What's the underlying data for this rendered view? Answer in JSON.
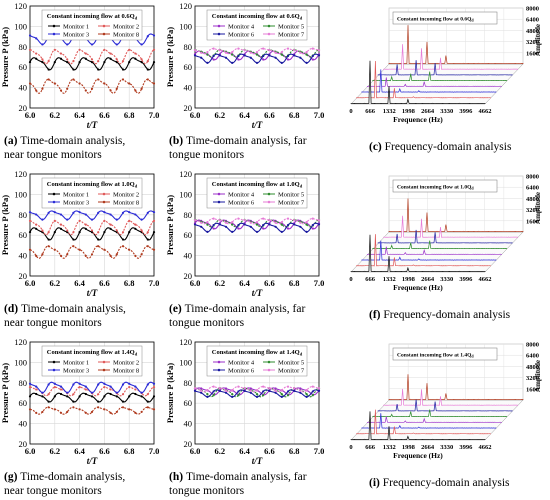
{
  "figure": {
    "rows": [
      {
        "time_near": {
          "legend_title": "Constant incoming flow at 0.6Q",
          "legend_sub": "d",
          "caption_letter": "(a)",
          "caption": "Time-domain analysis,",
          "caption2": "near tongue monitors"
        },
        "time_far": {
          "legend_title": "Constant incoming flow at 0.6Q",
          "legend_sub": "d",
          "caption_letter": "(b)",
          "caption": "Time-domain analysis, far",
          "caption2": "tongue monitors"
        },
        "freq": {
          "legend_title": "Constant incoming flow at 0.6Q",
          "legend_sub": "d",
          "caption_letter": "(c)",
          "caption": "Frequency-domain analysis"
        }
      },
      {
        "time_near": {
          "legend_title": "Constant incoming flow at 1.0Q",
          "legend_sub": "d",
          "caption_letter": "(d)",
          "caption": "Time-domain analysis,",
          "caption2": "near tongue monitors"
        },
        "time_far": {
          "legend_title": "Constant incoming flow at 1.0Q",
          "legend_sub": "d",
          "caption_letter": "(e)",
          "caption": "Time-domain analysis, far",
          "caption2": "tongue monitors"
        },
        "freq": {
          "legend_title": "Constant incoming flow at 1.0Q",
          "legend_sub": "d",
          "caption_letter": "(f)",
          "caption": "Frequency-domain analysis"
        }
      },
      {
        "time_near": {
          "legend_title": "Constant incoming flow at 1.4Q",
          "legend_sub": "d",
          "caption_letter": "(g)",
          "caption": "Time-domain analysis,",
          "caption2": "near tongue monitors"
        },
        "time_far": {
          "legend_title": "Constant incoming flow at 1.4Q",
          "legend_sub": "d",
          "caption_letter": "(h)",
          "caption": "Time-domain analysis, far",
          "caption2": "tongue monitors"
        },
        "freq": {
          "legend_title": "Constant incoming flow at 1.4Q",
          "legend_sub": "d",
          "caption_letter": "(i)",
          "caption": "Frequency-domain analysis"
        }
      }
    ]
  },
  "chart_data": [
    {
      "type": "line",
      "panel": "a",
      "xlabel": "t/T",
      "ylabel": "Pressure P (kPa)",
      "xlim": [
        6.0,
        7.0
      ],
      "ylim": [
        20,
        120
      ],
      "xticks": [
        "6.0",
        "6.2",
        "6.4",
        "6.6",
        "6.8",
        "7.0"
      ],
      "yticks": [
        "20",
        "40",
        "60",
        "80",
        "100",
        "120"
      ],
      "series": [
        {
          "name": "Monitor 1",
          "color": "#000000",
          "mean": 64,
          "amp": 7,
          "waves": 5
        },
        {
          "name": "Monitor 2",
          "color": "#e05a5a",
          "mean": 71,
          "amp": 8,
          "waves": 5
        },
        {
          "name": "Monitor 3",
          "color": "#2b2bd6",
          "mean": 88,
          "amp": 6,
          "waves": 5
        },
        {
          "name": "Monitor 8",
          "color": "#b03a1e",
          "mean": 42,
          "amp": 8,
          "waves": 5
        }
      ]
    },
    {
      "type": "line",
      "panel": "b",
      "xlabel": "t/T",
      "ylabel": "Pressure P (kPa)",
      "xlim": [
        6.0,
        7.0
      ],
      "ylim": [
        20,
        120
      ],
      "xticks": [
        "6.0",
        "6.2",
        "6.4",
        "6.6",
        "6.8",
        "7.0"
      ],
      "yticks": [
        "20",
        "40",
        "60",
        "80",
        "100",
        "120"
      ],
      "series": [
        {
          "name": "Monitor 4",
          "color": "#9b2fc9",
          "mean": 72,
          "amp": 5,
          "waves": 5
        },
        {
          "name": "Monitor 5",
          "color": "#2e8b2e",
          "mean": 74,
          "amp": 4,
          "waves": 5
        },
        {
          "name": "Monitor 6",
          "color": "#1a1aa0",
          "mean": 69,
          "amp": 5,
          "waves": 5
        },
        {
          "name": "Monitor 7",
          "color": "#e67bd6",
          "mean": 76,
          "amp": 3,
          "waves": 5
        }
      ]
    },
    {
      "type": "bar",
      "panel": "c",
      "subtype": "waterfall",
      "xlabel": "Frequence (Hz)",
      "zlabel": "Amplitude",
      "xticks": [
        "0",
        "666",
        "1332",
        "1998",
        "2664",
        "3330",
        "3996",
        "4662"
      ],
      "zticks": [
        "1600",
        "3200",
        "4800",
        "6400",
        "8000"
      ],
      "peak_frequencies": [
        666,
        1332,
        1998
      ],
      "peaks": [
        6500,
        3400,
        1900
      ]
    },
    {
      "type": "line",
      "panel": "d",
      "xlabel": "t/T",
      "ylabel": "Pressure P (kPa)",
      "xlim": [
        6.0,
        7.0
      ],
      "ylim": [
        20,
        120
      ],
      "xticks": [
        "6.0",
        "6.2",
        "6.4",
        "6.6",
        "6.8",
        "7.0"
      ],
      "yticks": [
        "20",
        "40",
        "60",
        "80",
        "100",
        "120"
      ],
      "series": [
        {
          "name": "Monitor 1",
          "color": "#000000",
          "mean": 62,
          "amp": 7,
          "waves": 5
        },
        {
          "name": "Monitor 2",
          "color": "#e05a5a",
          "mean": 68,
          "amp": 8,
          "waves": 5
        },
        {
          "name": "Monitor 3",
          "color": "#2b2bd6",
          "mean": 80,
          "amp": 5,
          "waves": 5
        },
        {
          "name": "Monitor 8",
          "color": "#b03a1e",
          "mean": 44,
          "amp": 7,
          "waves": 5
        }
      ]
    },
    {
      "type": "line",
      "panel": "e",
      "xlabel": "t/T",
      "ylabel": "Pressure P (kPa)",
      "xlim": [
        6.0,
        7.0
      ],
      "ylim": [
        20,
        120
      ],
      "xticks": [
        "6.0",
        "6.2",
        "6.4",
        "6.6",
        "6.8",
        "7.0"
      ],
      "yticks": [
        "20",
        "40",
        "60",
        "80",
        "100",
        "120"
      ],
      "series": [
        {
          "name": "Monitor 4",
          "color": "#9b2fc9",
          "mean": 71,
          "amp": 5,
          "waves": 5
        },
        {
          "name": "Monitor 5",
          "color": "#2e8b2e",
          "mean": 72,
          "amp": 4,
          "waves": 5
        },
        {
          "name": "Monitor 6",
          "color": "#1a1aa0",
          "mean": 68,
          "amp": 5,
          "waves": 5
        },
        {
          "name": "Monitor 7",
          "color": "#e67bd6",
          "mean": 74,
          "amp": 3,
          "waves": 5
        }
      ]
    },
    {
      "type": "bar",
      "panel": "f",
      "subtype": "waterfall",
      "xlabel": "Frequence (Hz)",
      "zlabel": "Amplitude",
      "xticks": [
        "0",
        "666",
        "1332",
        "1998",
        "2664",
        "3330",
        "3996",
        "4662"
      ],
      "zticks": [
        "1600",
        "3200",
        "4800",
        "6400",
        "8000"
      ],
      "peak_frequencies": [
        666,
        1332,
        1998
      ],
      "peaks": [
        5600,
        3000,
        1700
      ]
    },
    {
      "type": "line",
      "panel": "g",
      "xlabel": "t/T",
      "ylabel": "Pressure P (kPa)",
      "xlim": [
        6.0,
        7.0
      ],
      "ylim": [
        20,
        120
      ],
      "xticks": [
        "6.0",
        "6.2",
        "6.4",
        "6.6",
        "6.8",
        "7.0"
      ],
      "yticks": [
        "20",
        "40",
        "60",
        "80",
        "100",
        "120"
      ],
      "series": [
        {
          "name": "Monitor 1",
          "color": "#000000",
          "mean": 66,
          "amp": 5,
          "waves": 5
        },
        {
          "name": "Monitor 2",
          "color": "#e05a5a",
          "mean": 72,
          "amp": 5,
          "waves": 5
        },
        {
          "name": "Monitor 3",
          "color": "#2b2bd6",
          "mean": 76,
          "amp": 6,
          "waves": 5
        },
        {
          "name": "Monitor 8",
          "color": "#b03a1e",
          "mean": 53,
          "amp": 4,
          "waves": 5
        }
      ]
    },
    {
      "type": "line",
      "panel": "h",
      "xlabel": "t/T",
      "ylabel": "Pressure P (kPa)",
      "xlim": [
        6.0,
        7.0
      ],
      "ylim": [
        20,
        120
      ],
      "xticks": [
        "6.0",
        "6.2",
        "6.4",
        "6.6",
        "6.8",
        "7.0"
      ],
      "yticks": [
        "20",
        "40",
        "60",
        "80",
        "100",
        "120"
      ],
      "series": [
        {
          "name": "Monitor 4",
          "color": "#9b2fc9",
          "mean": 72,
          "amp": 4,
          "waves": 5
        },
        {
          "name": "Monitor 5",
          "color": "#2e8b2e",
          "mean": 71,
          "amp": 5,
          "waves": 5
        },
        {
          "name": "Monitor 6",
          "color": "#1a1aa0",
          "mean": 70,
          "amp": 4,
          "waves": 5
        },
        {
          "name": "Monitor 7",
          "color": "#e67bd6",
          "mean": 74,
          "amp": 3,
          "waves": 5
        }
      ]
    },
    {
      "type": "bar",
      "panel": "i",
      "subtype": "waterfall",
      "xlabel": "Frequence (Hz)",
      "zlabel": "Amplitude",
      "xticks": [
        "0",
        "666",
        "1332",
        "1998",
        "2664",
        "3330",
        "3996",
        "4662"
      ],
      "zticks": [
        "1600",
        "3200",
        "4800",
        "6400",
        "8000"
      ],
      "peak_frequencies": [
        666,
        1332,
        1998
      ],
      "peaks": [
        4300,
        2600,
        1500
      ]
    }
  ]
}
